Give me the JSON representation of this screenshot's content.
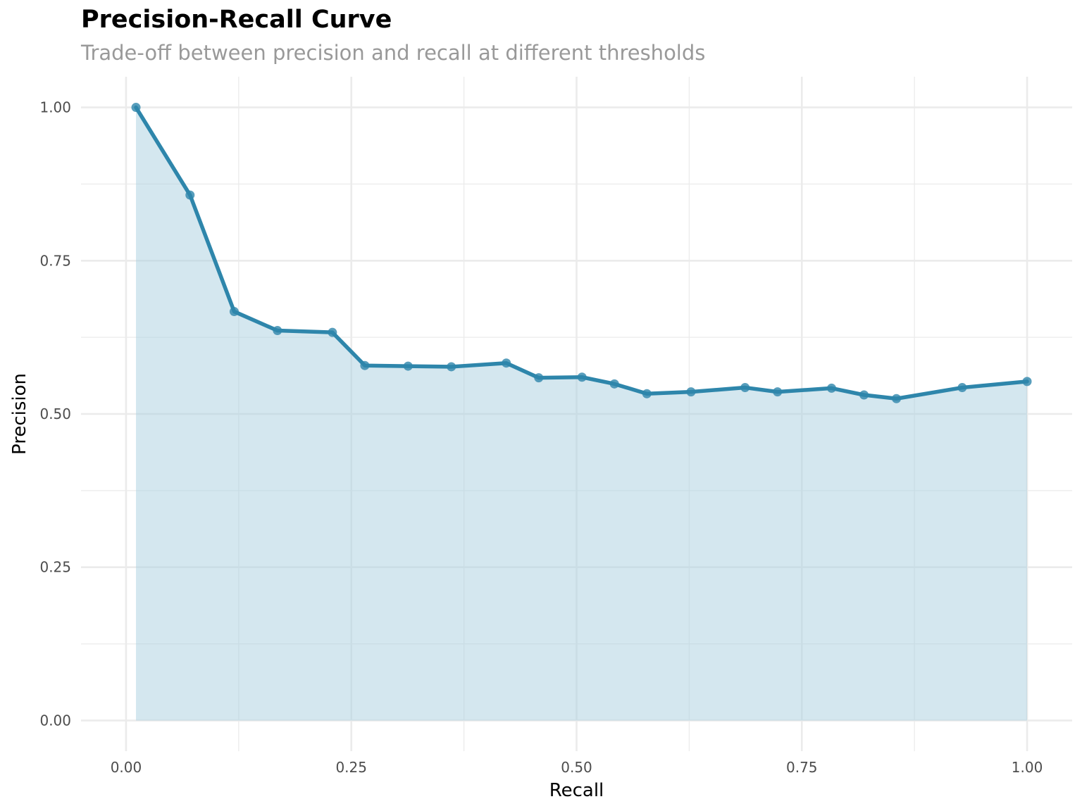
{
  "chart_data": {
    "type": "area",
    "title": "Precision-Recall Curve",
    "subtitle": "Trade-off between precision and recall at different thresholds",
    "xlabel": "Recall",
    "ylabel": "Precision",
    "xlim": [
      -0.05,
      1.05
    ],
    "ylim": [
      -0.05,
      1.05
    ],
    "x_ticks": [
      0.0,
      0.25,
      0.5,
      0.75,
      1.0
    ],
    "x_tick_labels": [
      "0.00",
      "0.25",
      "0.50",
      "0.75",
      "1.00"
    ],
    "y_ticks": [
      0.0,
      0.25,
      0.5,
      0.75,
      1.0
    ],
    "y_tick_labels": [
      "0.00",
      "0.25",
      "0.50",
      "0.75",
      "1.00"
    ],
    "grid": true,
    "colors": {
      "line": "#2e86ab",
      "fill": "#a9cfe0",
      "grid": "#ebebeb"
    },
    "series": [
      {
        "x": [
          0.011,
          0.071,
          0.12,
          0.168,
          0.229,
          0.265,
          0.313,
          0.361,
          0.422,
          0.458,
          0.506,
          0.542,
          0.578,
          0.627,
          0.687,
          0.723,
          0.783,
          0.819,
          0.855,
          0.928,
          1.0
        ],
        "y": [
          1.0,
          0.857,
          0.667,
          0.636,
          0.633,
          0.579,
          0.578,
          0.577,
          0.583,
          0.559,
          0.56,
          0.549,
          0.533,
          0.536,
          0.543,
          0.536,
          0.542,
          0.531,
          0.525,
          0.543,
          0.553
        ]
      }
    ]
  }
}
